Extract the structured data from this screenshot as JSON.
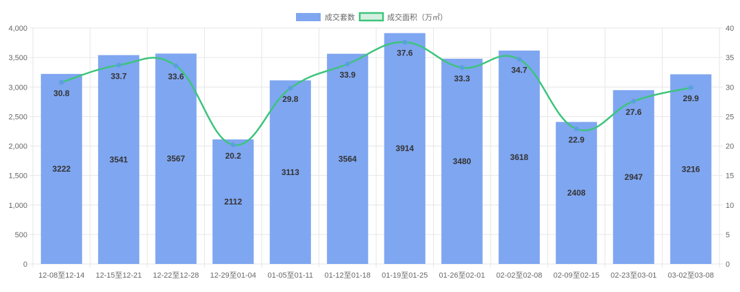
{
  "chart_data": {
    "type": "bar",
    "categories": [
      "12-08至12-14",
      "12-15至12-21",
      "12-22至12-28",
      "12-29至01-04",
      "01-05至01-11",
      "01-12至01-18",
      "01-19至01-25",
      "01-26至02-01",
      "02-02至02-08",
      "02-09至02-15",
      "02-23至03-01",
      "03-02至03-08"
    ],
    "series": [
      {
        "name": "成交套数",
        "type": "bar",
        "axis": "left",
        "values": [
          3222,
          3541,
          3567,
          2112,
          3113,
          3564,
          3914,
          3480,
          3618,
          2408,
          2947,
          3216
        ]
      },
      {
        "name": "成交面积（万㎡）",
        "type": "line",
        "axis": "right",
        "values": [
          30.8,
          33.7,
          33.6,
          20.2,
          29.8,
          33.9,
          37.6,
          33.3,
          34.7,
          22.9,
          27.6,
          29.9
        ]
      }
    ],
    "y_left": {
      "range": [
        0,
        4000
      ],
      "ticks": [
        "0",
        "500",
        "1,000",
        "1,500",
        "2,000",
        "2,500",
        "3,000",
        "3,500",
        "4,000"
      ]
    },
    "y_right": {
      "range": [
        0,
        40
      ],
      "ticks": [
        "0",
        "5",
        "10",
        "15",
        "20",
        "25",
        "30",
        "35",
        "40"
      ]
    },
    "legend_position": "top-center",
    "grid": true,
    "colors": {
      "bar": "#7fa6f0",
      "line": "#3cc47c",
      "point": "#5aa0e0",
      "grid": "#e6e6e6"
    }
  }
}
